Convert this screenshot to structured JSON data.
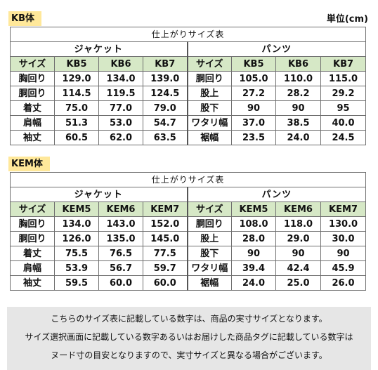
{
  "unit_label": "単位(cm)",
  "tables": [
    {
      "label": "KB体",
      "title": "仕上がりサイズ表",
      "jacket_title": "ジャケット",
      "pants_title": "パンツ",
      "header": [
        "サイズ",
        "KB5",
        "KB6",
        "KB7",
        "サイズ",
        "KB5",
        "KB6",
        "KB7"
      ],
      "rows": [
        [
          "胸回り",
          "129.0",
          "134.0",
          "139.0",
          "胴回り",
          "105.0",
          "110.0",
          "115.0"
        ],
        [
          "胴回り",
          "114.5",
          "119.5",
          "124.5",
          "股上",
          "27.2",
          "28.2",
          "29.2"
        ],
        [
          "着丈",
          "75.0",
          "77.0",
          "79.0",
          "股下",
          "90",
          "90",
          "95"
        ],
        [
          "肩幅",
          "51.3",
          "53.0",
          "54.7",
          "ワタリ幅",
          "37.0",
          "38.5",
          "40.0"
        ],
        [
          "袖丈",
          "60.5",
          "62.0",
          "63.5",
          "裾幅",
          "23.5",
          "24.0",
          "24.5"
        ]
      ]
    },
    {
      "label": "KEM体",
      "title": "仕上がりサイズ表",
      "jacket_title": "ジャケット",
      "pants_title": "パンツ",
      "header": [
        "サイズ",
        "KEM5",
        "KEM6",
        "KEM7",
        "サイズ",
        "KEM5",
        "KEM6",
        "KEM7"
      ],
      "rows": [
        [
          "胸回り",
          "134.0",
          "143.0",
          "152.0",
          "胴回り",
          "108.0",
          "118.0",
          "130.0"
        ],
        [
          "胴回り",
          "126.0",
          "135.0",
          "145.0",
          "股上",
          "28.0",
          "29.0",
          "30.0"
        ],
        [
          "着丈",
          "75.5",
          "76.5",
          "77.5",
          "股下",
          "90",
          "90",
          "90"
        ],
        [
          "肩幅",
          "53.9",
          "56.7",
          "59.7",
          "ワタリ幅",
          "39.4",
          "42.4",
          "45.9"
        ],
        [
          "袖丈",
          "59.5",
          "60.0",
          "60.0",
          "裾幅",
          "24.0",
          "25.0",
          "26.0"
        ]
      ]
    }
  ],
  "note_lines": [
    "こちらのサイズ表に記載している数字は、商品の実寸サイズとなります。",
    "サイズ選択画面に記載している数字あるいはお届けした商品タグに記載している数字は",
    "ヌード寸の目安となりますので、実寸サイズと異なる場合がございます。"
  ]
}
